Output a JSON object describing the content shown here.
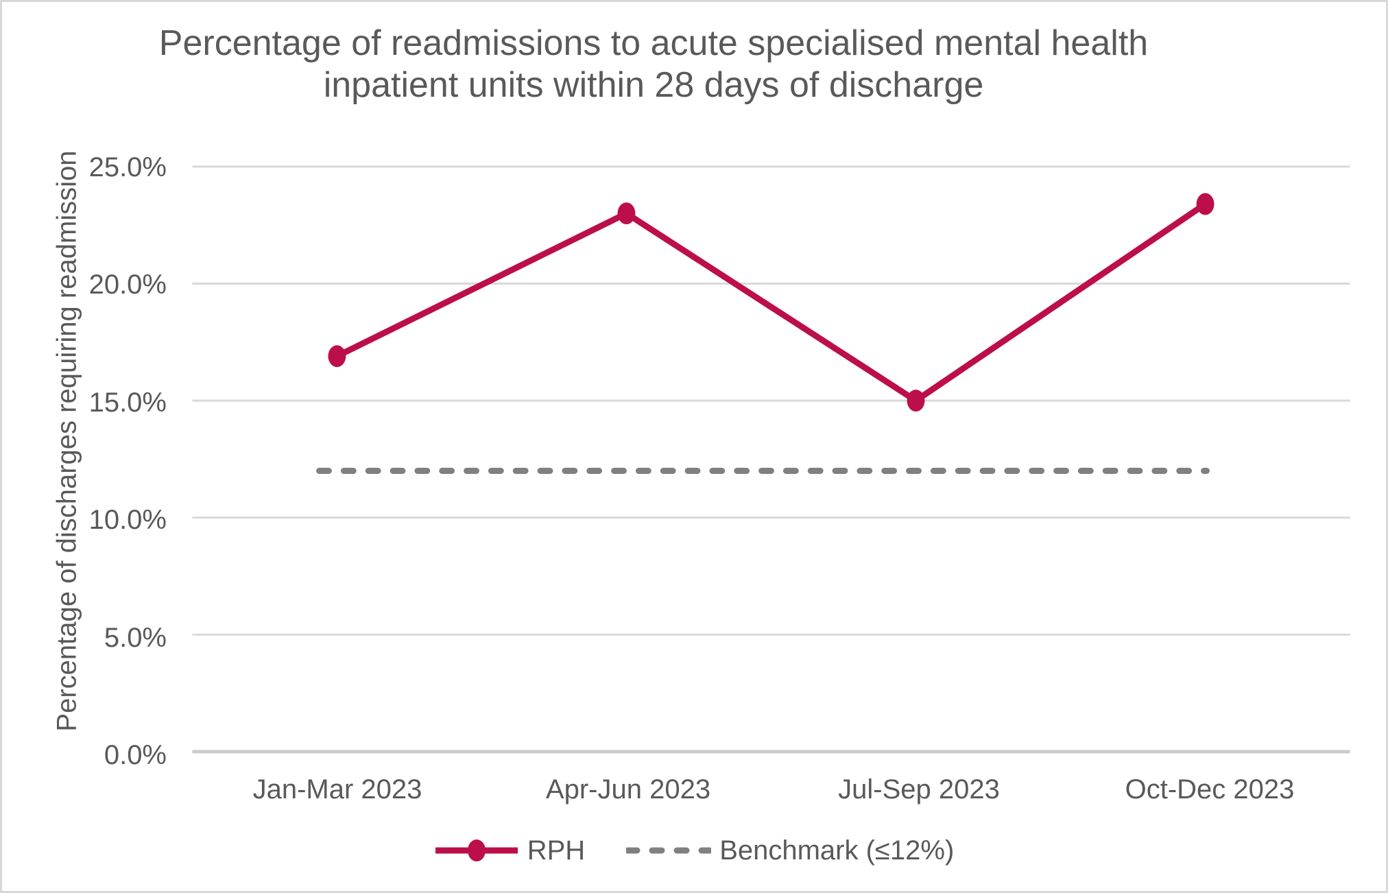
{
  "frame": {
    "background_color": "#FFFFFF",
    "border_color": "#D8D8D8",
    "text_color": "#595959"
  },
  "chart_data": {
    "type": "line",
    "title": "Percentage of readmissions to acute specialised mental health inpatient units within 28 days of discharge",
    "xlabel": "",
    "ylabel": "Percentage of discharges requiring readmission",
    "categories": [
      "Jan-Mar 2023",
      "Apr-Jun 2023",
      "Jul-Sep 2023",
      "Oct-Dec 2023"
    ],
    "series": [
      {
        "name": "RPH",
        "values": [
          16.9,
          23.0,
          15.0,
          23.4
        ],
        "color": "#BD0E4C",
        "line_style": "solid",
        "marker": "circle"
      },
      {
        "name": "Benchmark (≤12%)",
        "values": [
          12,
          12,
          12,
          12
        ],
        "color": "#808080",
        "line_style": "dashed",
        "marker": "none"
      }
    ],
    "ylim": [
      0,
      25
    ],
    "yticks": [
      0,
      5,
      10,
      15,
      20,
      25
    ],
    "ytick_labels": [
      "0.0%",
      "5.0%",
      "10.0%",
      "15.0%",
      "20.0%",
      "25.0%"
    ],
    "grid": "horizontal",
    "gridline_color": "#D9D9D9",
    "axis_line_color": "#CBCBCB",
    "legend_position": "bottom",
    "legend": [
      {
        "label": "RPH"
      },
      {
        "label": "Benchmark (≤12%)"
      }
    ]
  }
}
